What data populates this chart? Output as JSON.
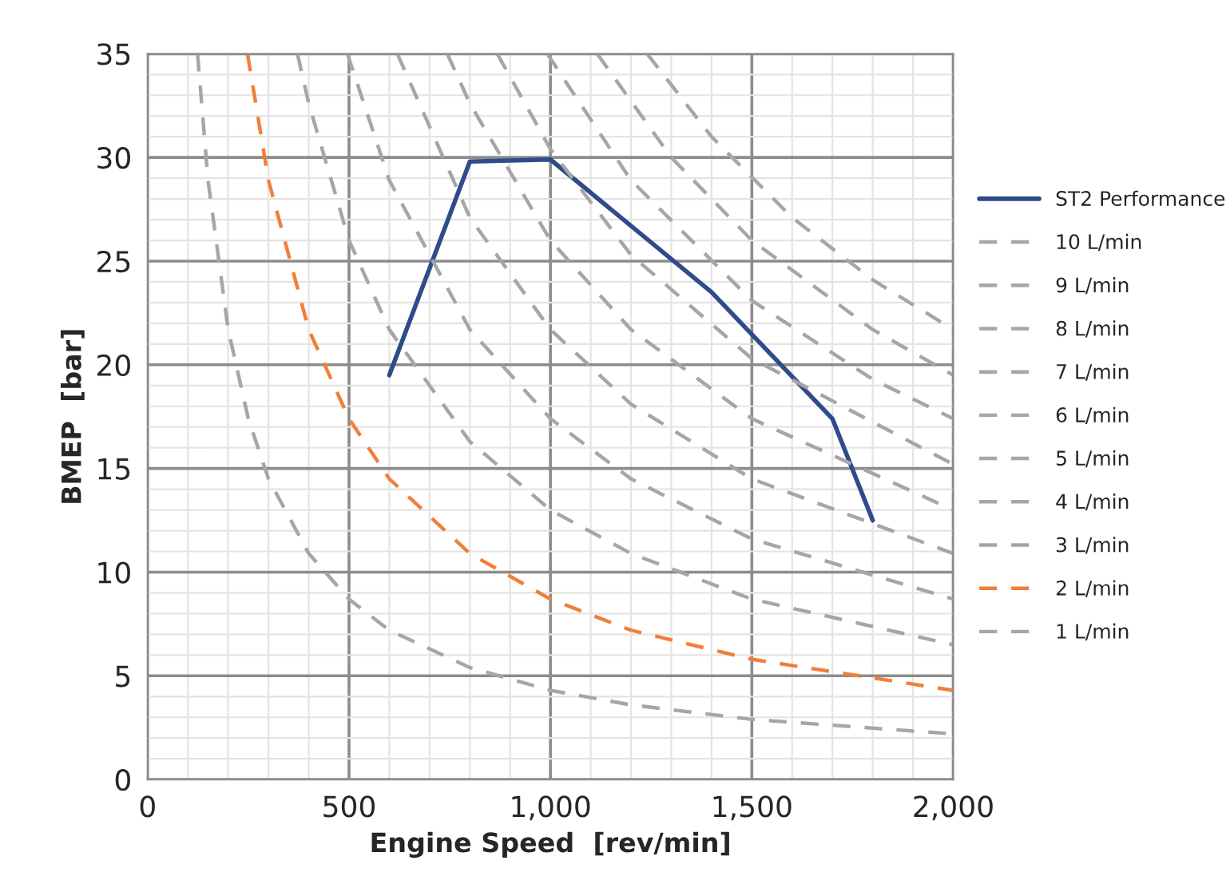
{
  "chart_data": {
    "type": "line",
    "xlabel": "Engine Speed  [rev/min]",
    "ylabel": "BMEP  [bar]",
    "xlim": [
      0,
      2000
    ],
    "xticks": [
      0,
      500,
      {
        "value": 1000,
        "label": "1,000"
      },
      {
        "value": 1500,
        "label": "1,500"
      },
      {
        "value": 2000,
        "label": "2,000"
      }
    ],
    "ylim": [
      0,
      35
    ],
    "yticks": [
      0,
      5,
      10,
      15,
      20,
      25,
      30,
      35
    ],
    "grid": true,
    "legend": "right",
    "series": [
      {
        "name": "ST2 Performance",
        "color": "#2f4b8a",
        "line_style": "solid",
        "x": [
          600,
          800,
          1000,
          1400,
          1700,
          1800
        ],
        "values": [
          19.5,
          29.8,
          29.9,
          23.5,
          17.4,
          12.5
        ]
      },
      {
        "name": "10 L/min",
        "color": "#a6a6a6",
        "line_style": "dashed",
        "x": [
          1240,
          1400,
          1600,
          1800,
          2000
        ],
        "values": [
          35.0,
          31.0,
          27.1,
          24.1,
          21.7
        ]
      },
      {
        "name": "9 L/min",
        "color": "#a6a6a6",
        "line_style": "dashed",
        "x": [
          1116,
          1300,
          1500,
          1800,
          2000
        ],
        "values": [
          35.0,
          30.0,
          26.0,
          21.7,
          19.5
        ]
      },
      {
        "name": "8 L/min",
        "color": "#a6a6a6",
        "line_style": "dashed",
        "x": [
          992,
          1200,
          1500,
          1800,
          2000
        ],
        "values": [
          35.0,
          28.9,
          23.1,
          19.3,
          17.4
        ]
      },
      {
        "name": "7 L/min",
        "color": "#a6a6a6",
        "line_style": "dashed",
        "x": [
          868,
          1000,
          1200,
          1500,
          2000
        ],
        "values": [
          35.0,
          30.4,
          25.3,
          20.3,
          15.2
        ]
      },
      {
        "name": "6 L/min",
        "color": "#a6a6a6",
        "line_style": "dashed",
        "x": [
          744,
          800,
          1000,
          1200,
          1500,
          2000
        ],
        "values": [
          35.0,
          32.6,
          26.0,
          21.7,
          17.4,
          13.0
        ]
      },
      {
        "name": "5 L/min",
        "color": "#a6a6a6",
        "line_style": "dashed",
        "x": [
          620,
          800,
          1000,
          1200,
          1500,
          2000
        ],
        "values": [
          35.0,
          27.1,
          21.7,
          18.1,
          14.5,
          10.9
        ]
      },
      {
        "name": "4 L/min",
        "color": "#a6a6a6",
        "line_style": "dashed",
        "x": [
          496,
          600,
          800,
          1000,
          1200,
          1500,
          2000
        ],
        "values": [
          35.0,
          28.9,
          21.7,
          17.4,
          14.5,
          11.6,
          8.7
        ]
      },
      {
        "name": "3 L/min",
        "color": "#a6a6a6",
        "line_style": "dashed",
        "x": [
          372,
          400,
          500,
          600,
          800,
          1000,
          1200,
          1500,
          2000
        ],
        "values": [
          35.0,
          32.6,
          26.0,
          21.7,
          16.3,
          13.0,
          10.9,
          8.7,
          6.5
        ]
      },
      {
        "name": "2 L/min",
        "color": "#f07f3c",
        "line_style": "dashed",
        "x": [
          248,
          300,
          400,
          500,
          600,
          800,
          1000,
          1200,
          1500,
          2000
        ],
        "values": [
          35.0,
          28.9,
          21.7,
          17.4,
          14.5,
          10.9,
          8.7,
          7.2,
          5.8,
          4.3
        ]
      },
      {
        "name": "1 L/min",
        "color": "#a6a6a6",
        "line_style": "dashed",
        "x": [
          124,
          150,
          200,
          250,
          300,
          400,
          500,
          600,
          800,
          1000,
          1200,
          1500,
          2000
        ],
        "values": [
          35.0,
          28.9,
          21.7,
          17.4,
          14.5,
          10.9,
          8.7,
          7.2,
          5.4,
          4.3,
          3.6,
          2.9,
          2.2
        ]
      }
    ]
  }
}
